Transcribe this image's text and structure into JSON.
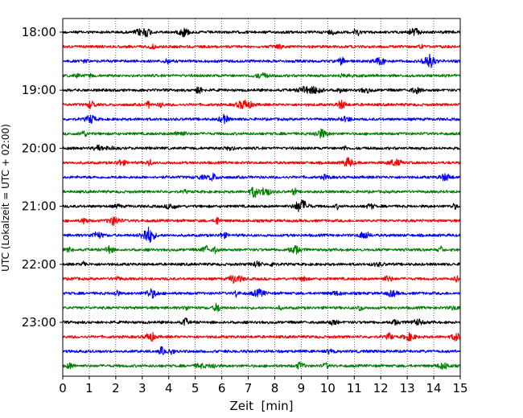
{
  "chart_data": {
    "type": "line",
    "title": "",
    "xlabel": "Zeit  [min]",
    "ylabel": "UTC (Lokalzeit = UTC + 02:00)",
    "xlim": [
      0,
      15
    ],
    "x_ticks": [
      "0",
      "1",
      "2",
      "3",
      "4",
      "5",
      "6",
      "7",
      "8",
      "9",
      "10",
      "11",
      "12",
      "13",
      "14",
      "15"
    ],
    "y_ticks": [
      "18:00",
      "19:00",
      "20:00",
      "21:00",
      "22:00",
      "23:00"
    ],
    "grid": "vertical dotted lines at each minute",
    "trace_interval_minutes": 15,
    "color_cycle": [
      "#000000",
      "#ff0000",
      "#0000ff",
      "#008000"
    ],
    "traces": [
      {
        "time": "18:00",
        "color": "#000000"
      },
      {
        "time": "18:15",
        "color": "#ff0000"
      },
      {
        "time": "18:30",
        "color": "#0000ff"
      },
      {
        "time": "18:45",
        "color": "#008000"
      },
      {
        "time": "19:00",
        "color": "#000000"
      },
      {
        "time": "19:15",
        "color": "#ff0000"
      },
      {
        "time": "19:30",
        "color": "#0000ff"
      },
      {
        "time": "19:45",
        "color": "#008000"
      },
      {
        "time": "20:00",
        "color": "#000000"
      },
      {
        "time": "20:15",
        "color": "#ff0000"
      },
      {
        "time": "20:30",
        "color": "#0000ff"
      },
      {
        "time": "20:45",
        "color": "#008000"
      },
      {
        "time": "21:00",
        "color": "#000000"
      },
      {
        "time": "21:15",
        "color": "#ff0000"
      },
      {
        "time": "21:30",
        "color": "#0000ff"
      },
      {
        "time": "21:45",
        "color": "#008000"
      },
      {
        "time": "22:00",
        "color": "#000000"
      },
      {
        "time": "22:15",
        "color": "#ff0000"
      },
      {
        "time": "22:30",
        "color": "#0000ff"
      },
      {
        "time": "22:45",
        "color": "#008000"
      },
      {
        "time": "23:00",
        "color": "#000000"
      },
      {
        "time": "23:15",
        "color": "#ff0000"
      },
      {
        "time": "23:30",
        "color": "#0000ff"
      },
      {
        "time": "23:45",
        "color": "#008000"
      }
    ]
  }
}
